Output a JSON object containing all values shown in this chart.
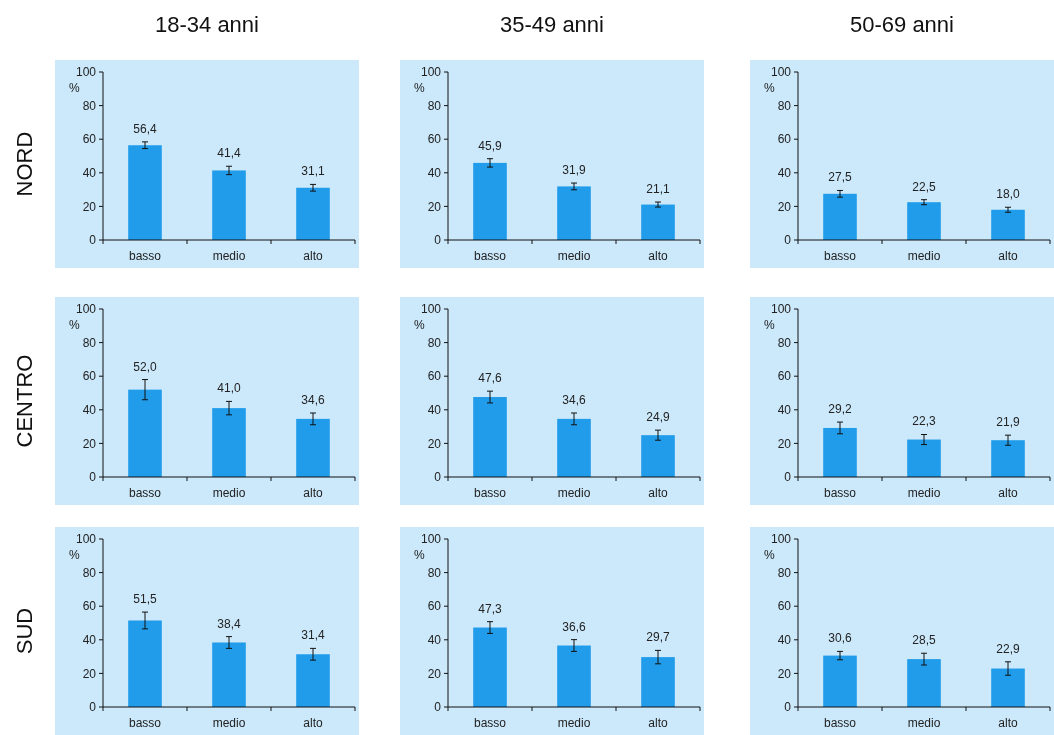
{
  "chart_data": [
    {
      "type": "bar",
      "title": "18-34 anni",
      "ylabel": "%",
      "annotations": [
        "NORD"
      ],
      "categories": [
        "basso",
        "medio",
        "alto"
      ],
      "values": [
        56.4,
        41.4,
        31.1
      ],
      "value_labels": [
        "56,4",
        "41,4",
        "31,1"
      ],
      "errors": [
        2,
        2.5,
        2
      ],
      "color": "#209cea",
      "ylim": [
        0,
        100
      ],
      "yticks": [
        0,
        20,
        40,
        60,
        80,
        100
      ]
    },
    {
      "type": "bar",
      "title": "35-49 anni",
      "ylabel": "%",
      "categories": [
        "basso",
        "medio",
        "alto"
      ],
      "values": [
        45.9,
        31.9,
        21.1
      ],
      "value_labels": [
        "45,9",
        "31,9",
        "21,1"
      ],
      "errors": [
        2.5,
        2,
        1.5
      ],
      "color": "#209cea",
      "ylim": [
        0,
        100
      ],
      "yticks": [
        0,
        20,
        40,
        60,
        80,
        100
      ]
    },
    {
      "type": "bar",
      "title": "50-69 anni",
      "ylabel": "%",
      "categories": [
        "basso",
        "medio",
        "alto"
      ],
      "values": [
        27.5,
        22.5,
        18.0
      ],
      "value_labels": [
        "27,5",
        "22,5",
        "18,0"
      ],
      "errors": [
        2,
        1.5,
        1.5
      ],
      "color": "#209cea",
      "ylim": [
        0,
        100
      ],
      "yticks": [
        0,
        20,
        40,
        60,
        80,
        100
      ]
    },
    {
      "type": "bar",
      "ylabel": "%",
      "annotations": [
        "CENTRO"
      ],
      "categories": [
        "basso",
        "medio",
        "alto"
      ],
      "values": [
        52.0,
        41.0,
        34.6
      ],
      "value_labels": [
        "52,0",
        "41,0",
        "34,6"
      ],
      "errors": [
        6,
        4,
        3.5
      ],
      "color": "#209cea",
      "ylim": [
        0,
        100
      ],
      "yticks": [
        0,
        20,
        40,
        60,
        80,
        100
      ]
    },
    {
      "type": "bar",
      "ylabel": "%",
      "categories": [
        "basso",
        "medio",
        "alto"
      ],
      "values": [
        47.6,
        34.6,
        24.9
      ],
      "value_labels": [
        "47,6",
        "34,6",
        "24,9"
      ],
      "errors": [
        3.5,
        3.5,
        3
      ],
      "color": "#209cea",
      "ylim": [
        0,
        100
      ],
      "yticks": [
        0,
        20,
        40,
        60,
        80,
        100
      ]
    },
    {
      "type": "bar",
      "ylabel": "%",
      "categories": [
        "basso",
        "medio",
        "alto"
      ],
      "values": [
        29.2,
        22.3,
        21.9
      ],
      "value_labels": [
        "29,2",
        "22,3",
        "21,9"
      ],
      "errors": [
        3.5,
        3,
        3
      ],
      "color": "#209cea",
      "ylim": [
        0,
        100
      ],
      "yticks": [
        0,
        20,
        40,
        60,
        80,
        100
      ]
    },
    {
      "type": "bar",
      "ylabel": "%",
      "annotations": [
        "SUD"
      ],
      "categories": [
        "basso",
        "medio",
        "alto"
      ],
      "values": [
        51.5,
        38.4,
        31.4
      ],
      "value_labels": [
        "51,5",
        "38,4",
        "31,4"
      ],
      "errors": [
        5,
        3.5,
        3.5
      ],
      "color": "#209cea",
      "ylim": [
        0,
        100
      ],
      "yticks": [
        0,
        20,
        40,
        60,
        80,
        100
      ]
    },
    {
      "type": "bar",
      "ylabel": "%",
      "categories": [
        "basso",
        "medio",
        "alto"
      ],
      "values": [
        47.3,
        36.6,
        29.7
      ],
      "value_labels": [
        "47,3",
        "36,6",
        "29,7"
      ],
      "errors": [
        3.5,
        3.5,
        4
      ],
      "color": "#209cea",
      "ylim": [
        0,
        100
      ],
      "yticks": [
        0,
        20,
        40,
        60,
        80,
        100
      ]
    },
    {
      "type": "bar",
      "ylabel": "%",
      "categories": [
        "basso",
        "medio",
        "alto"
      ],
      "values": [
        30.6,
        28.5,
        22.9
      ],
      "value_labels": [
        "30,6",
        "28,5",
        "22,9"
      ],
      "errors": [
        2.5,
        3.5,
        4
      ],
      "color": "#209cea",
      "ylim": [
        0,
        100
      ],
      "yticks": [
        0,
        20,
        40,
        60,
        80,
        100
      ]
    }
  ]
}
